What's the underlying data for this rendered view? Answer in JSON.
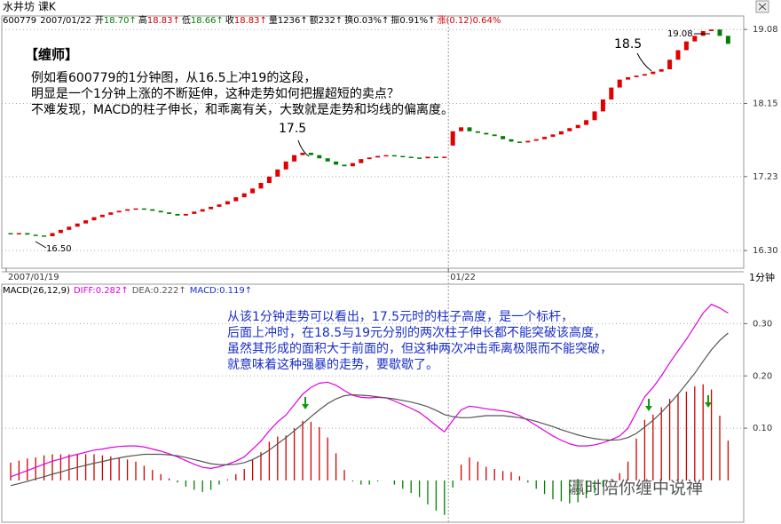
{
  "header": {
    "title": "水井坊 课K",
    "quote": [
      {
        "text": "600779",
        "color": "#000"
      },
      {
        "text": "2007/01/22",
        "color": "#000"
      },
      {
        "text": "开",
        "color": "#000"
      },
      {
        "text": "18.70↑",
        "color": "#008000"
      },
      {
        "text": "高",
        "color": "#000"
      },
      {
        "text": "18.83↑",
        "color": "#d00000"
      },
      {
        "text": "低",
        "color": "#000"
      },
      {
        "text": "18.66↑",
        "color": "#008000"
      },
      {
        "text": "收",
        "color": "#000"
      },
      {
        "text": "18.83↑",
        "color": "#d00000"
      },
      {
        "text": "量",
        "color": "#000"
      },
      {
        "text": "1236↑",
        "color": "#000"
      },
      {
        "text": "额",
        "color": "#000"
      },
      {
        "text": "232↑",
        "color": "#000"
      },
      {
        "text": "换",
        "color": "#000"
      },
      {
        "text": "0.03%↑",
        "color": "#000"
      },
      {
        "text": "振",
        "color": "#000"
      },
      {
        "text": "0.91%↑",
        "color": "#000"
      },
      {
        "text": "涨",
        "color": "#d00000"
      },
      {
        "text": "(0.12)0.64%",
        "color": "#d00000"
      }
    ],
    "period": "1分钟",
    "watermark": "瀛时陪你缠中说禅"
  },
  "chart_data": [
    {
      "type": "candlestick",
      "up_color": "#e00000",
      "down_color": "#008000",
      "categories": [
        "2007/01/19",
        null,
        null,
        null,
        null,
        null,
        null,
        null,
        null,
        null,
        null,
        null,
        null,
        null,
        null,
        null,
        null,
        null,
        null,
        null,
        null,
        null,
        null,
        null,
        null,
        null,
        null,
        null,
        null,
        null,
        null,
        null,
        null,
        null,
        null,
        null,
        null,
        null,
        null,
        null,
        null,
        null,
        null,
        null,
        null,
        null,
        null,
        null,
        null,
        null,
        null,
        null,
        null,
        "01/22",
        null,
        null,
        null,
        null,
        null,
        null,
        null,
        null,
        null,
        null,
        null,
        null,
        null,
        null,
        null,
        null,
        null,
        null,
        null,
        null,
        null,
        null,
        null,
        null,
        null,
        null,
        null,
        null,
        null,
        null,
        null,
        null,
        null
      ],
      "open": [
        16.52,
        16.51,
        16.52,
        16.5,
        16.49,
        16.48,
        16.52,
        16.56,
        16.6,
        16.64,
        16.68,
        16.72,
        16.75,
        16.78,
        16.8,
        16.82,
        16.83,
        16.82,
        16.8,
        16.78,
        16.76,
        16.74,
        16.76,
        16.79,
        16.82,
        16.85,
        16.88,
        16.92,
        16.97,
        17.02,
        17.08,
        17.15,
        17.23,
        17.32,
        17.42,
        17.5,
        17.53,
        17.5,
        17.46,
        17.42,
        17.38,
        17.36,
        17.4,
        17.45,
        17.47,
        17.49,
        17.5,
        17.49,
        17.48,
        17.47,
        17.46,
        17.48,
        17.47,
        17.62,
        17.8,
        17.85,
        17.8,
        17.78,
        17.76,
        17.74,
        17.7,
        17.67,
        17.66,
        17.68,
        17.7,
        17.73,
        17.76,
        17.8,
        17.84,
        17.88,
        17.94,
        18.05,
        18.2,
        18.35,
        18.45,
        18.48,
        18.5,
        18.52,
        18.55,
        18.58,
        18.7,
        18.82,
        18.93,
        19.0,
        19.06,
        19.08,
        19.0
      ],
      "close": [
        16.51,
        16.52,
        16.5,
        16.49,
        16.48,
        16.52,
        16.56,
        16.6,
        16.64,
        16.68,
        16.72,
        16.75,
        16.78,
        16.8,
        16.82,
        16.83,
        16.82,
        16.8,
        16.78,
        16.76,
        16.74,
        16.76,
        16.79,
        16.82,
        16.85,
        16.88,
        16.92,
        16.97,
        17.02,
        17.08,
        17.15,
        17.23,
        17.32,
        17.42,
        17.5,
        17.53,
        17.5,
        17.46,
        17.42,
        17.38,
        17.36,
        17.4,
        17.45,
        17.47,
        17.49,
        17.5,
        17.49,
        17.48,
        17.47,
        17.46,
        17.48,
        17.47,
        17.48,
        17.8,
        17.85,
        17.8,
        17.78,
        17.76,
        17.74,
        17.7,
        17.67,
        17.66,
        17.68,
        17.7,
        17.73,
        17.76,
        17.8,
        17.84,
        17.88,
        17.94,
        18.05,
        18.2,
        18.35,
        18.45,
        18.48,
        18.5,
        18.52,
        18.55,
        18.58,
        18.7,
        18.82,
        18.93,
        19.0,
        19.06,
        19.08,
        19.0,
        18.9
      ],
      "ylim": [
        16.1,
        19.25
      ],
      "yticks": [
        {
          "value": 16.3,
          "label": "16.30"
        },
        {
          "value": 17.23,
          "label": "17.23"
        },
        {
          "value": 18.15,
          "label": "18.15"
        },
        {
          "value": 19.08,
          "label": "19.08"
        }
      ],
      "grid": true,
      "annotations": [
        "【缠师】",
        "例如看600779的1分钟图，从16.5上冲19的这段，",
        "明显是一个1分钟上涨的不断延伸，这种走势如何把握超短的卖点？",
        "不难发现，MACD的柱子伸长，和乖离有关，大致就是走势和均线的偏离度。",
        "17.5",
        "18.5",
        "16.50",
        "19.08"
      ]
    },
    {
      "type": "macd",
      "title": "MACD(26,12,9)",
      "series": [
        {
          "name": "DIFF:0.282↑",
          "color": "#e000e0",
          "values": [
            0.007,
            0.013,
            0.019,
            0.025,
            0.031,
            0.037,
            0.041,
            0.046,
            0.05,
            0.054,
            0.058,
            0.06,
            0.063,
            0.065,
            0.066,
            0.066,
            0.064,
            0.06,
            0.056,
            0.051,
            0.045,
            0.038,
            0.031,
            0.025,
            0.023,
            0.026,
            0.031,
            0.037,
            0.045,
            0.06,
            0.075,
            0.095,
            0.112,
            0.125,
            0.145,
            0.165,
            0.178,
            0.186,
            0.188,
            0.182,
            0.172,
            0.163,
            0.159,
            0.158,
            0.159,
            0.158,
            0.152,
            0.145,
            0.138,
            0.13,
            0.118,
            0.105,
            0.093,
            0.115,
            0.135,
            0.142,
            0.14,
            0.137,
            0.135,
            0.133,
            0.13,
            0.124,
            0.115,
            0.105,
            0.095,
            0.085,
            0.077,
            0.07,
            0.066,
            0.066,
            0.068,
            0.072,
            0.078,
            0.085,
            0.1,
            0.13,
            0.16,
            0.178,
            0.2,
            0.225,
            0.248,
            0.27,
            0.295,
            0.32,
            0.337,
            0.33,
            0.32
          ]
        },
        {
          "name": "DEA:0.222↑",
          "color": "#555555",
          "values": [
            -0.01,
            -0.006,
            -0.002,
            0.003,
            0.007,
            0.012,
            0.016,
            0.021,
            0.025,
            0.029,
            0.033,
            0.036,
            0.04,
            0.043,
            0.046,
            0.048,
            0.05,
            0.05,
            0.05,
            0.049,
            0.047,
            0.044,
            0.04,
            0.036,
            0.032,
            0.03,
            0.03,
            0.031,
            0.034,
            0.04,
            0.048,
            0.058,
            0.07,
            0.082,
            0.095,
            0.108,
            0.122,
            0.135,
            0.147,
            0.156,
            0.162,
            0.164,
            0.163,
            0.162,
            0.16,
            0.158,
            0.156,
            0.153,
            0.15,
            0.146,
            0.141,
            0.134,
            0.126,
            0.122,
            0.12,
            0.12,
            0.122,
            0.124,
            0.124,
            0.124,
            0.122,
            0.12,
            0.117,
            0.113,
            0.108,
            0.103,
            0.097,
            0.092,
            0.087,
            0.083,
            0.08,
            0.078,
            0.077,
            0.078,
            0.082,
            0.09,
            0.102,
            0.115,
            0.13,
            0.147,
            0.165,
            0.185,
            0.205,
            0.228,
            0.25,
            0.268,
            0.282
          ]
        },
        {
          "name": "MACD:0.119↑",
          "color": "#1a2ec8",
          "up_color": "#d00000",
          "down_color": "#008000",
          "values": [
            0.034,
            0.038,
            0.042,
            0.044,
            0.048,
            0.05,
            0.05,
            0.05,
            0.05,
            0.05,
            0.05,
            0.048,
            0.046,
            0.044,
            0.04,
            0.036,
            0.028,
            0.02,
            0.012,
            0.004,
            -0.004,
            -0.012,
            -0.018,
            -0.022,
            -0.018,
            -0.008,
            0.002,
            0.012,
            0.022,
            0.04,
            0.054,
            0.074,
            0.084,
            0.086,
            0.1,
            0.114,
            0.112,
            0.102,
            0.082,
            0.052,
            0.02,
            -0.002,
            -0.008,
            -0.008,
            -0.002,
            0,
            -0.008,
            -0.016,
            -0.024,
            -0.032,
            -0.046,
            -0.058,
            -0.066,
            -0.014,
            0.03,
            0.044,
            0.036,
            0.026,
            0.022,
            0.018,
            0.016,
            0.008,
            -0.004,
            -0.016,
            -0.026,
            -0.036,
            -0.04,
            -0.044,
            -0.042,
            -0.034,
            -0.024,
            -0.012,
            0.002,
            0.014,
            0.036,
            0.08,
            0.116,
            0.126,
            0.14,
            0.156,
            0.166,
            0.17,
            0.18,
            0.184,
            0.174,
            0.124,
            0.076
          ]
        }
      ],
      "ylim": [
        -0.08,
        0.35
      ],
      "yticks": [
        {
          "value": 0.1,
          "label": "0.10"
        },
        {
          "value": 0.2,
          "label": "0.20"
        },
        {
          "value": 0.3,
          "label": "0.30"
        }
      ],
      "grid": true,
      "annotations": [
        "从该1分钟走势可以看出，17.5元时的柱子高度，是一个标杆，",
        "后面上冲时，在18.5与19元分别的两次柱子伸长都不能突破该高度，",
        "虽然其形成的面积大于前面的，但这种两次冲击乖离极限而不能突破，",
        "就意味着这种强暴的走势，要歇歇了。"
      ]
    }
  ]
}
